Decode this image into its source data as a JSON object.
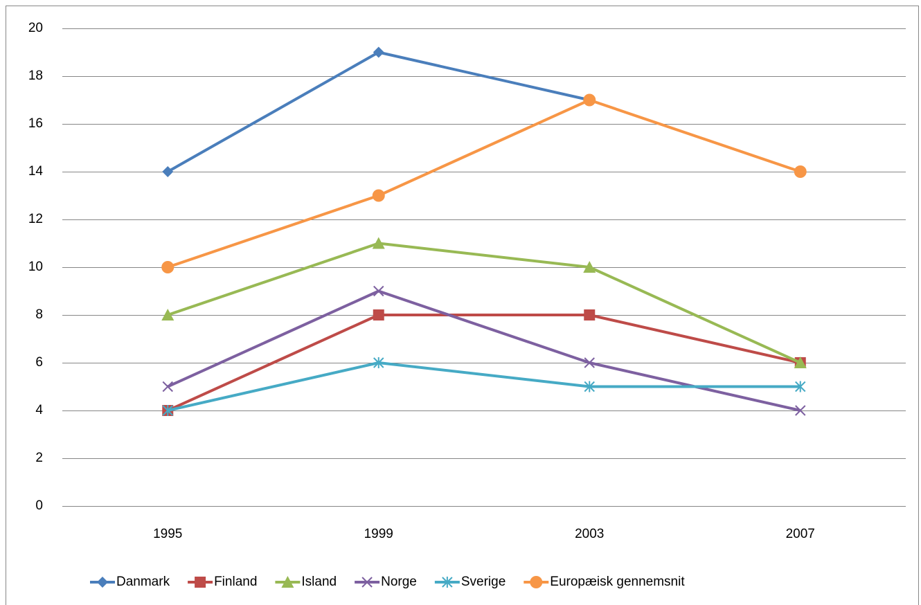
{
  "chart_data": {
    "type": "line",
    "categories": [
      "1995",
      "1999",
      "2003",
      "2007"
    ],
    "series": [
      {
        "name": "Danmark",
        "color": "#4a7ebb",
        "marker": "diamond",
        "values": [
          14,
          19,
          17,
          null
        ]
      },
      {
        "name": "Finland",
        "color": "#be4b48",
        "marker": "square",
        "values": [
          4,
          8,
          8,
          6
        ]
      },
      {
        "name": "Island",
        "color": "#98b954",
        "marker": "triangle",
        "values": [
          8,
          11,
          10,
          6
        ]
      },
      {
        "name": "Norge",
        "color": "#7d60a0",
        "marker": "x",
        "values": [
          5,
          9,
          6,
          4
        ]
      },
      {
        "name": "Sverige",
        "color": "#46aac5",
        "marker": "star",
        "values": [
          4,
          6,
          5,
          5
        ]
      },
      {
        "name": "Europæisk gennemsnit",
        "color": "#f79646",
        "marker": "circle",
        "values": [
          10,
          13,
          17,
          14
        ]
      }
    ],
    "ylim": [
      0,
      20
    ],
    "yticks": [
      0,
      2,
      4,
      6,
      8,
      10,
      12,
      14,
      16,
      18,
      20
    ],
    "grid": true,
    "legend": "bottom"
  }
}
